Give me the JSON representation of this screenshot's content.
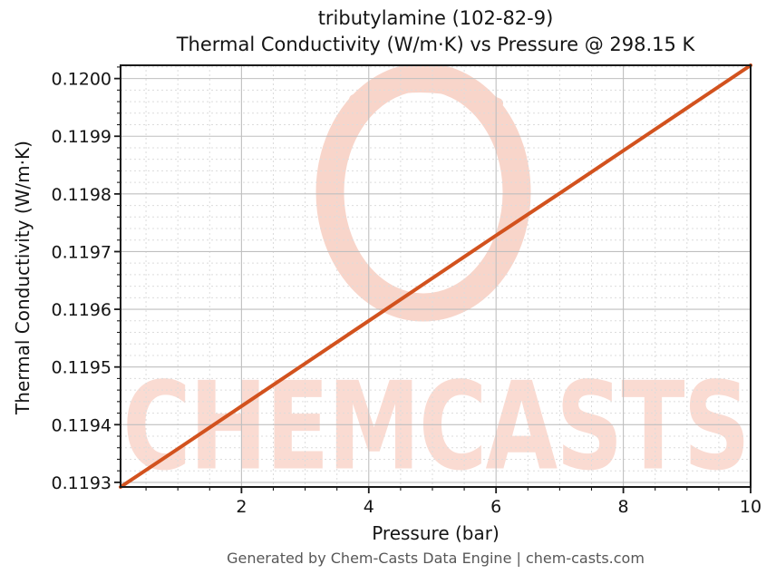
{
  "header": {
    "title_line1": "tributylamine (102-82-9)",
    "title_line2": "Thermal Conductivity (W/m·K) vs Pressure @ 298.15 K"
  },
  "axes": {
    "x_label": "Pressure (bar)",
    "y_label": "Thermal Conductivity (W/m·K)"
  },
  "watermark": {
    "text": "CHEMCASTS",
    "text_color": "#fadbd2",
    "ring_color": "#f8d5ca"
  },
  "footer": {
    "text": "Generated by Chem-Casts Data Engine | chem-casts.com",
    "color": "#575757"
  },
  "colors": {
    "line": "#d2521e",
    "major_grid": "#bfbfbf",
    "minor_grid": "#dcdcdc",
    "spine": "#1a1a1a",
    "text": "#141414"
  },
  "chart_data": {
    "type": "line",
    "title": "tributylamine (102-82-9) — Thermal Conductivity (W/m·K) vs Pressure @ 298.15 K",
    "xlabel": "Pressure (bar)",
    "ylabel": "Thermal Conductivity (W/m·K)",
    "xlim": [
      0.1,
      10.0
    ],
    "ylim": [
      0.119292,
      0.120023
    ],
    "xticks": [
      2,
      4,
      6,
      8,
      10
    ],
    "xtick_labels": [
      "2",
      "4",
      "6",
      "8",
      "10"
    ],
    "yticks": [
      0.1193,
      0.1194,
      0.1195,
      0.1196,
      0.1197,
      0.1198,
      0.1199,
      0.12
    ],
    "ytick_labels": [
      "0.1193",
      "0.1194",
      "0.1195",
      "0.1196",
      "0.1197",
      "0.1198",
      "0.1199",
      "0.1200"
    ],
    "x_minor_step": 0.5,
    "y_minor_step": 2e-05,
    "grid": true,
    "legend": false,
    "series": [
      {
        "name": "Thermal conductivity vs pressure at 298.15 K",
        "color": "#d2521e",
        "x": [
          0.1,
          1,
          2,
          3,
          4,
          5,
          6,
          7,
          8,
          9,
          10
        ],
        "y": [
          0.119292,
          0.119358,
          0.119432,
          0.119506,
          0.11958,
          0.119654,
          0.119728,
          0.119801,
          0.119875,
          0.119949,
          0.120023
        ]
      }
    ]
  }
}
